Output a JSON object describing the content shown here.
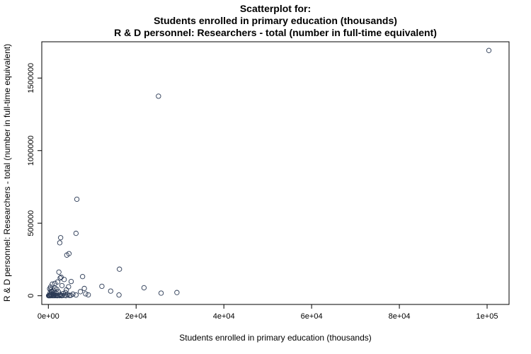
{
  "chart_data": {
    "type": "scatter",
    "title_lines": [
      "Scatterplot for:",
      "Students enrolled in primary education (thousands)",
      "R & D personnel: Researchers - total (number in full-time equivalent)"
    ],
    "xlabel": "Students enrolled in primary education (thousands)",
    "ylabel": "R & D personnel: Researchers - total (number in full-time equivalent)",
    "xlim": [
      -1500,
      105000
    ],
    "ylim": [
      -60000,
      1750000
    ],
    "x_ticks": [
      {
        "value": 0,
        "label": "0e+00"
      },
      {
        "value": 20000,
        "label": "2e+04"
      },
      {
        "value": 40000,
        "label": "4e+04"
      },
      {
        "value": 60000,
        "label": "6e+04"
      },
      {
        "value": 80000,
        "label": "8e+04"
      },
      {
        "value": 100000,
        "label": "1e+05"
      }
    ],
    "y_ticks": [
      {
        "value": 0,
        "label": "0"
      },
      {
        "value": 500000,
        "label": "500000"
      },
      {
        "value": 1000000,
        "label": "1000000"
      },
      {
        "value": 1500000,
        "label": "1500000"
      }
    ],
    "grid": false,
    "legend": "none",
    "marker": "open-circle",
    "point_color": "#2b3a55",
    "points": [
      {
        "x": 100400,
        "y": 1690000
      },
      {
        "x": 25100,
        "y": 1375000
      },
      {
        "x": 6500,
        "y": 665000
      },
      {
        "x": 2800,
        "y": 400000
      },
      {
        "x": 6300,
        "y": 430000
      },
      {
        "x": 2600,
        "y": 365000
      },
      {
        "x": 4700,
        "y": 290000
      },
      {
        "x": 4200,
        "y": 280000
      },
      {
        "x": 16200,
        "y": 183000
      },
      {
        "x": 2400,
        "y": 163000
      },
      {
        "x": 7800,
        "y": 132000
      },
      {
        "x": 2900,
        "y": 128000
      },
      {
        "x": 2700,
        "y": 122000
      },
      {
        "x": 3600,
        "y": 112000
      },
      {
        "x": 5200,
        "y": 98000
      },
      {
        "x": 2100,
        "y": 95000
      },
      {
        "x": 1500,
        "y": 85000
      },
      {
        "x": 900,
        "y": 80000
      },
      {
        "x": 3100,
        "y": 70000
      },
      {
        "x": 12200,
        "y": 65000
      },
      {
        "x": 4600,
        "y": 62000
      },
      {
        "x": 21800,
        "y": 55000
      },
      {
        "x": 8200,
        "y": 50000
      },
      {
        "x": 300,
        "y": 48000
      },
      {
        "x": 1900,
        "y": 45000
      },
      {
        "x": 600,
        "y": 42000
      },
      {
        "x": 4100,
        "y": 40000
      },
      {
        "x": 1200,
        "y": 38000
      },
      {
        "x": 14200,
        "y": 32000
      },
      {
        "x": 7300,
        "y": 28000
      },
      {
        "x": 2300,
        "y": 27000
      },
      {
        "x": 800,
        "y": 25000
      },
      {
        "x": 3900,
        "y": 22000
      },
      {
        "x": 29300,
        "y": 22000
      },
      {
        "x": 400,
        "y": 20000
      },
      {
        "x": 25700,
        "y": 18000
      },
      {
        "x": 1700,
        "y": 18000
      },
      {
        "x": 3400,
        "y": 15000
      },
      {
        "x": 8500,
        "y": 13000
      },
      {
        "x": 1000,
        "y": 12000
      },
      {
        "x": 5600,
        "y": 11000
      },
      {
        "x": 2600,
        "y": 10000
      },
      {
        "x": 500,
        "y": 9000
      },
      {
        "x": 4400,
        "y": 8000
      },
      {
        "x": 9100,
        "y": 6000
      },
      {
        "x": 1400,
        "y": 7000
      },
      {
        "x": 6300,
        "y": 5000
      },
      {
        "x": 16100,
        "y": 5000
      },
      {
        "x": 200,
        "y": 4000
      },
      {
        "x": 2800,
        "y": 4000
      },
      {
        "x": 3700,
        "y": 3000
      },
      {
        "x": 700,
        "y": 3000
      },
      {
        "x": 5100,
        "y": 2500
      },
      {
        "x": 1800,
        "y": 2000
      },
      {
        "x": 4800,
        "y": 2000
      },
      {
        "x": 100,
        "y": 1500
      },
      {
        "x": 2200,
        "y": 1500
      },
      {
        "x": 1100,
        "y": 1000
      },
      {
        "x": 3200,
        "y": 1000
      },
      {
        "x": 400,
        "y": 800
      },
      {
        "x": 600,
        "y": 500
      },
      {
        "x": 1600,
        "y": 500
      },
      {
        "x": 2500,
        "y": 400
      },
      {
        "x": 1300,
        "y": 300
      },
      {
        "x": 300,
        "y": 200
      },
      {
        "x": 900,
        "y": 200
      },
      {
        "x": 2000,
        "y": 100
      },
      {
        "x": 50,
        "y": 100
      },
      {
        "x": 4000,
        "y": 300
      },
      {
        "x": 3000,
        "y": 200
      },
      {
        "x": 700,
        "y": 30000
      },
      {
        "x": 1500,
        "y": 52000
      },
      {
        "x": 500,
        "y": 60000
      }
    ]
  }
}
